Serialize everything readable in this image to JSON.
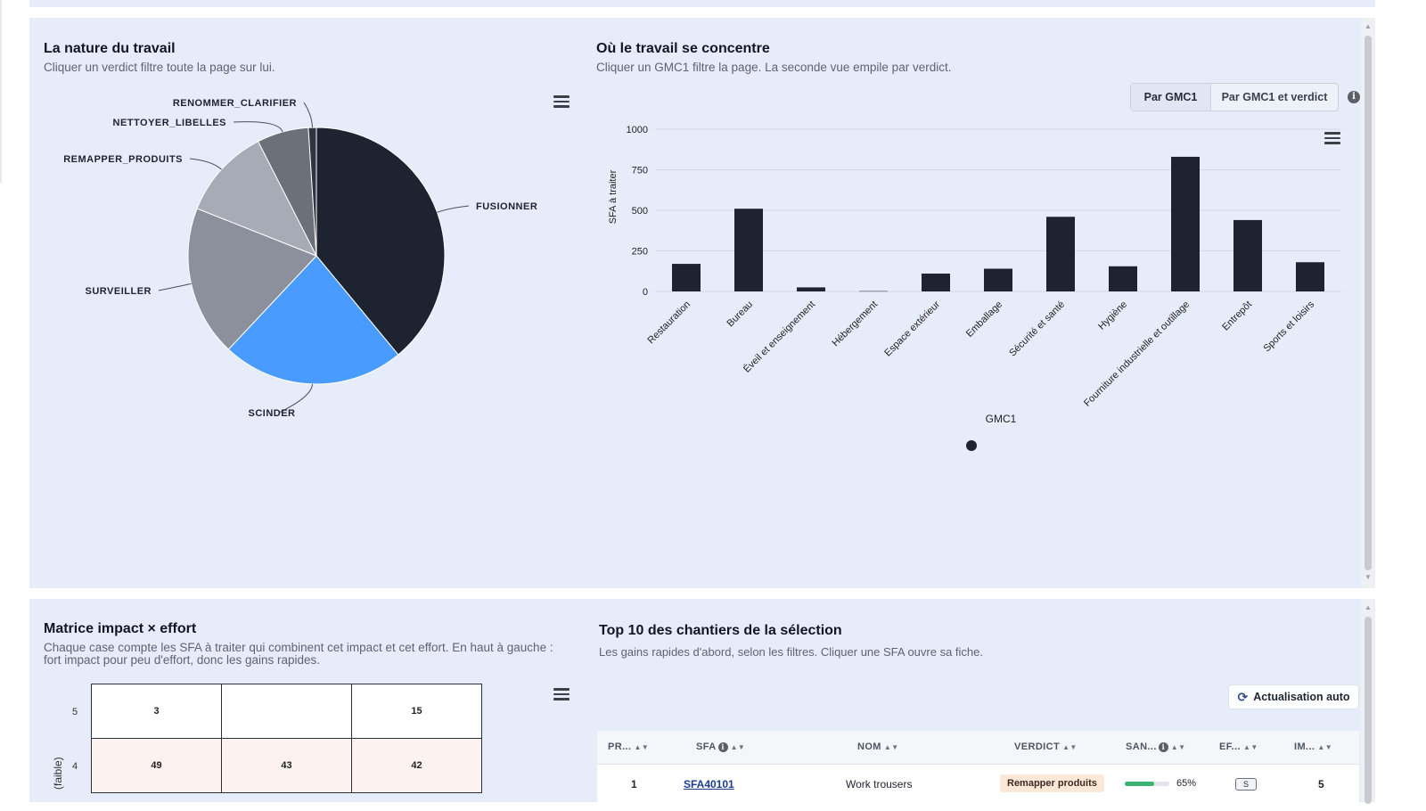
{
  "nature": {
    "title": "La nature du travail",
    "subtitle": "Cliquer un verdict filtre toute la page sur lui.",
    "slices": [
      {
        "label": "FUSIONNER",
        "value": 39,
        "color": "#1d2330"
      },
      {
        "label": "SCINDER",
        "value": 23,
        "color": "#4a9bff"
      },
      {
        "label": "SURVEILLER",
        "value": 19,
        "color": "#8b909c"
      },
      {
        "label": "REMAPPER_PRODUITS",
        "value": 11.5,
        "color": "#a7abb6"
      },
      {
        "label": "NETTOYER_LIBELLES",
        "value": 6.5,
        "color": "#6c7079"
      },
      {
        "label": "RENOMMER_CLARIFIER",
        "value": 1,
        "color": "#2f3440"
      }
    ]
  },
  "concentration": {
    "title": "Où le travail se concentre",
    "subtitle": "Cliquer un GMC1 filtre la page. La seconde vue empile par verdict.",
    "toggle": {
      "active": "Par GMC1",
      "inactive": "Par GMC1 et verdict"
    },
    "info_icon": "i"
  },
  "chart_data": {
    "type": "bar",
    "categories": [
      "Restauration",
      "Bureau",
      "Éveil et enseignement",
      "Hébergement",
      "Espace extérieur",
      "Emballage",
      "Sécurité et santé",
      "Hygiène",
      "Fourniture industrielle et outillage",
      "Entrepôt",
      "Sports et loisirs"
    ],
    "values": [
      170,
      510,
      25,
      2,
      110,
      140,
      460,
      155,
      830,
      440,
      180
    ],
    "xlabel": "GMC1",
    "ylabel": "SFA à traiter",
    "ylim": [
      0,
      1000
    ],
    "yticks": [
      "0",
      "250",
      "500",
      "750",
      "1000"
    ],
    "grid": true,
    "color": "#1d2330"
  },
  "matrix": {
    "title": "Matrice impact × effort",
    "subtitle_line1": "Chaque case compte les SFA à traiter qui combinent cet impact et cet effort. En haut à gauche :",
    "subtitle_line2": "fort impact pour peu d'effort, donc les gains rapides.",
    "y_axis_title": "(faible)",
    "rows": [
      {
        "label": "5",
        "cells": [
          "3",
          "",
          "15"
        ]
      },
      {
        "label": "4",
        "cells": [
          "49",
          "43",
          "42"
        ]
      }
    ]
  },
  "top10": {
    "title": "Top 10 des chantiers de la sélection",
    "subtitle": "Les gains rapides d'abord, selon les filtres. Cliquer une SFA ouvre sa fiche.",
    "auto_button": "Actualisation auto",
    "columns": [
      "PR...",
      "SFA",
      "NOM",
      "VERDICT",
      "SAN...",
      "EF...",
      "IM..."
    ],
    "row": {
      "rank": "1",
      "sfa": "SFA40101",
      "nom": "Work trousers",
      "verdict": "Remapper produits",
      "sante": "65%",
      "sante_fraction": 0.65,
      "effort": "S",
      "impact": "5"
    }
  }
}
